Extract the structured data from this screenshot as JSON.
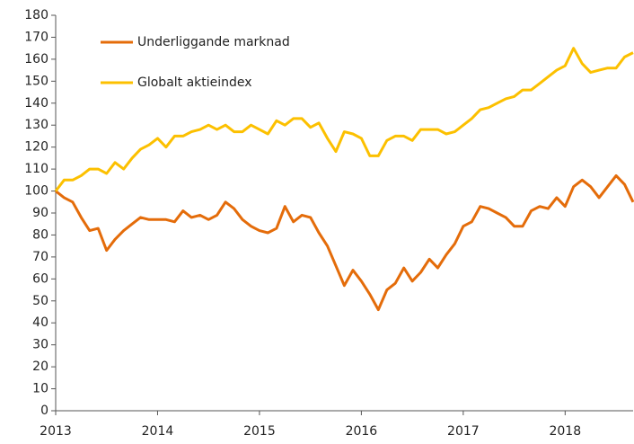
{
  "chart_data": {
    "type": "line",
    "x": [
      2013,
      2013.083,
      2013.167,
      2013.25,
      2013.333,
      2013.417,
      2013.5,
      2013.583,
      2013.667,
      2013.75,
      2013.833,
      2013.917,
      2014,
      2014.083,
      2014.167,
      2014.25,
      2014.333,
      2014.417,
      2014.5,
      2014.583,
      2014.667,
      2014.75,
      2014.833,
      2014.917,
      2015,
      2015.083,
      2015.167,
      2015.25,
      2015.333,
      2015.417,
      2015.5,
      2015.583,
      2015.667,
      2015.75,
      2015.833,
      2015.917,
      2016,
      2016.083,
      2016.167,
      2016.25,
      2016.333,
      2016.417,
      2016.5,
      2016.583,
      2016.667,
      2016.75,
      2016.833,
      2016.917,
      2017,
      2017.083,
      2017.167,
      2017.25,
      2017.333,
      2017.417,
      2017.5,
      2017.583,
      2017.667,
      2017.75,
      2017.833,
      2017.917,
      2018,
      2018.083,
      2018.167,
      2018.25,
      2018.333,
      2018.417,
      2018.5,
      2018.583,
      2018.667
    ],
    "series": [
      {
        "name": "Underliggande marknad",
        "color": "#e46c0a",
        "values": [
          100,
          97,
          95,
          88,
          82,
          83,
          73,
          78,
          82,
          85,
          88,
          87,
          87,
          87,
          86,
          91,
          88,
          89,
          87,
          89,
          95,
          92,
          87,
          84,
          82,
          81,
          83,
          93,
          86,
          89,
          88,
          81,
          75,
          66,
          57,
          64,
          59,
          53,
          46,
          55,
          58,
          65,
          59,
          63,
          69,
          65,
          71,
          76,
          84,
          86,
          93,
          92,
          90,
          88,
          84,
          84,
          91,
          93,
          92,
          97,
          93,
          102,
          105,
          102,
          97,
          102,
          107,
          103,
          95
        ]
      },
      {
        "name": "Globalt aktieindex",
        "color": "#fcc000",
        "values": [
          100,
          105,
          105,
          107,
          110,
          110,
          108,
          113,
          110,
          115,
          119,
          121,
          124,
          120,
          125,
          125,
          127,
          128,
          130,
          128,
          130,
          127,
          127,
          130,
          128,
          126,
          132,
          130,
          133,
          133,
          129,
          131,
          124,
          118,
          127,
          126,
          124,
          116,
          116,
          123,
          125,
          125,
          123,
          128,
          128,
          128,
          126,
          127,
          130,
          133,
          137,
          138,
          140,
          142,
          143,
          146,
          146,
          149,
          152,
          155,
          157,
          165,
          158,
          154,
          155,
          156,
          156,
          161,
          163
        ]
      }
    ],
    "xlim": [
      2013,
      2018.667
    ],
    "xticks": [
      2013,
      2014,
      2015,
      2016,
      2017,
      2018
    ],
    "ylim": [
      0,
      180
    ],
    "yticks": [
      0,
      10,
      20,
      30,
      40,
      50,
      60,
      70,
      80,
      90,
      100,
      110,
      120,
      130,
      140,
      150,
      160,
      170,
      180
    ],
    "legend": "upper left"
  }
}
